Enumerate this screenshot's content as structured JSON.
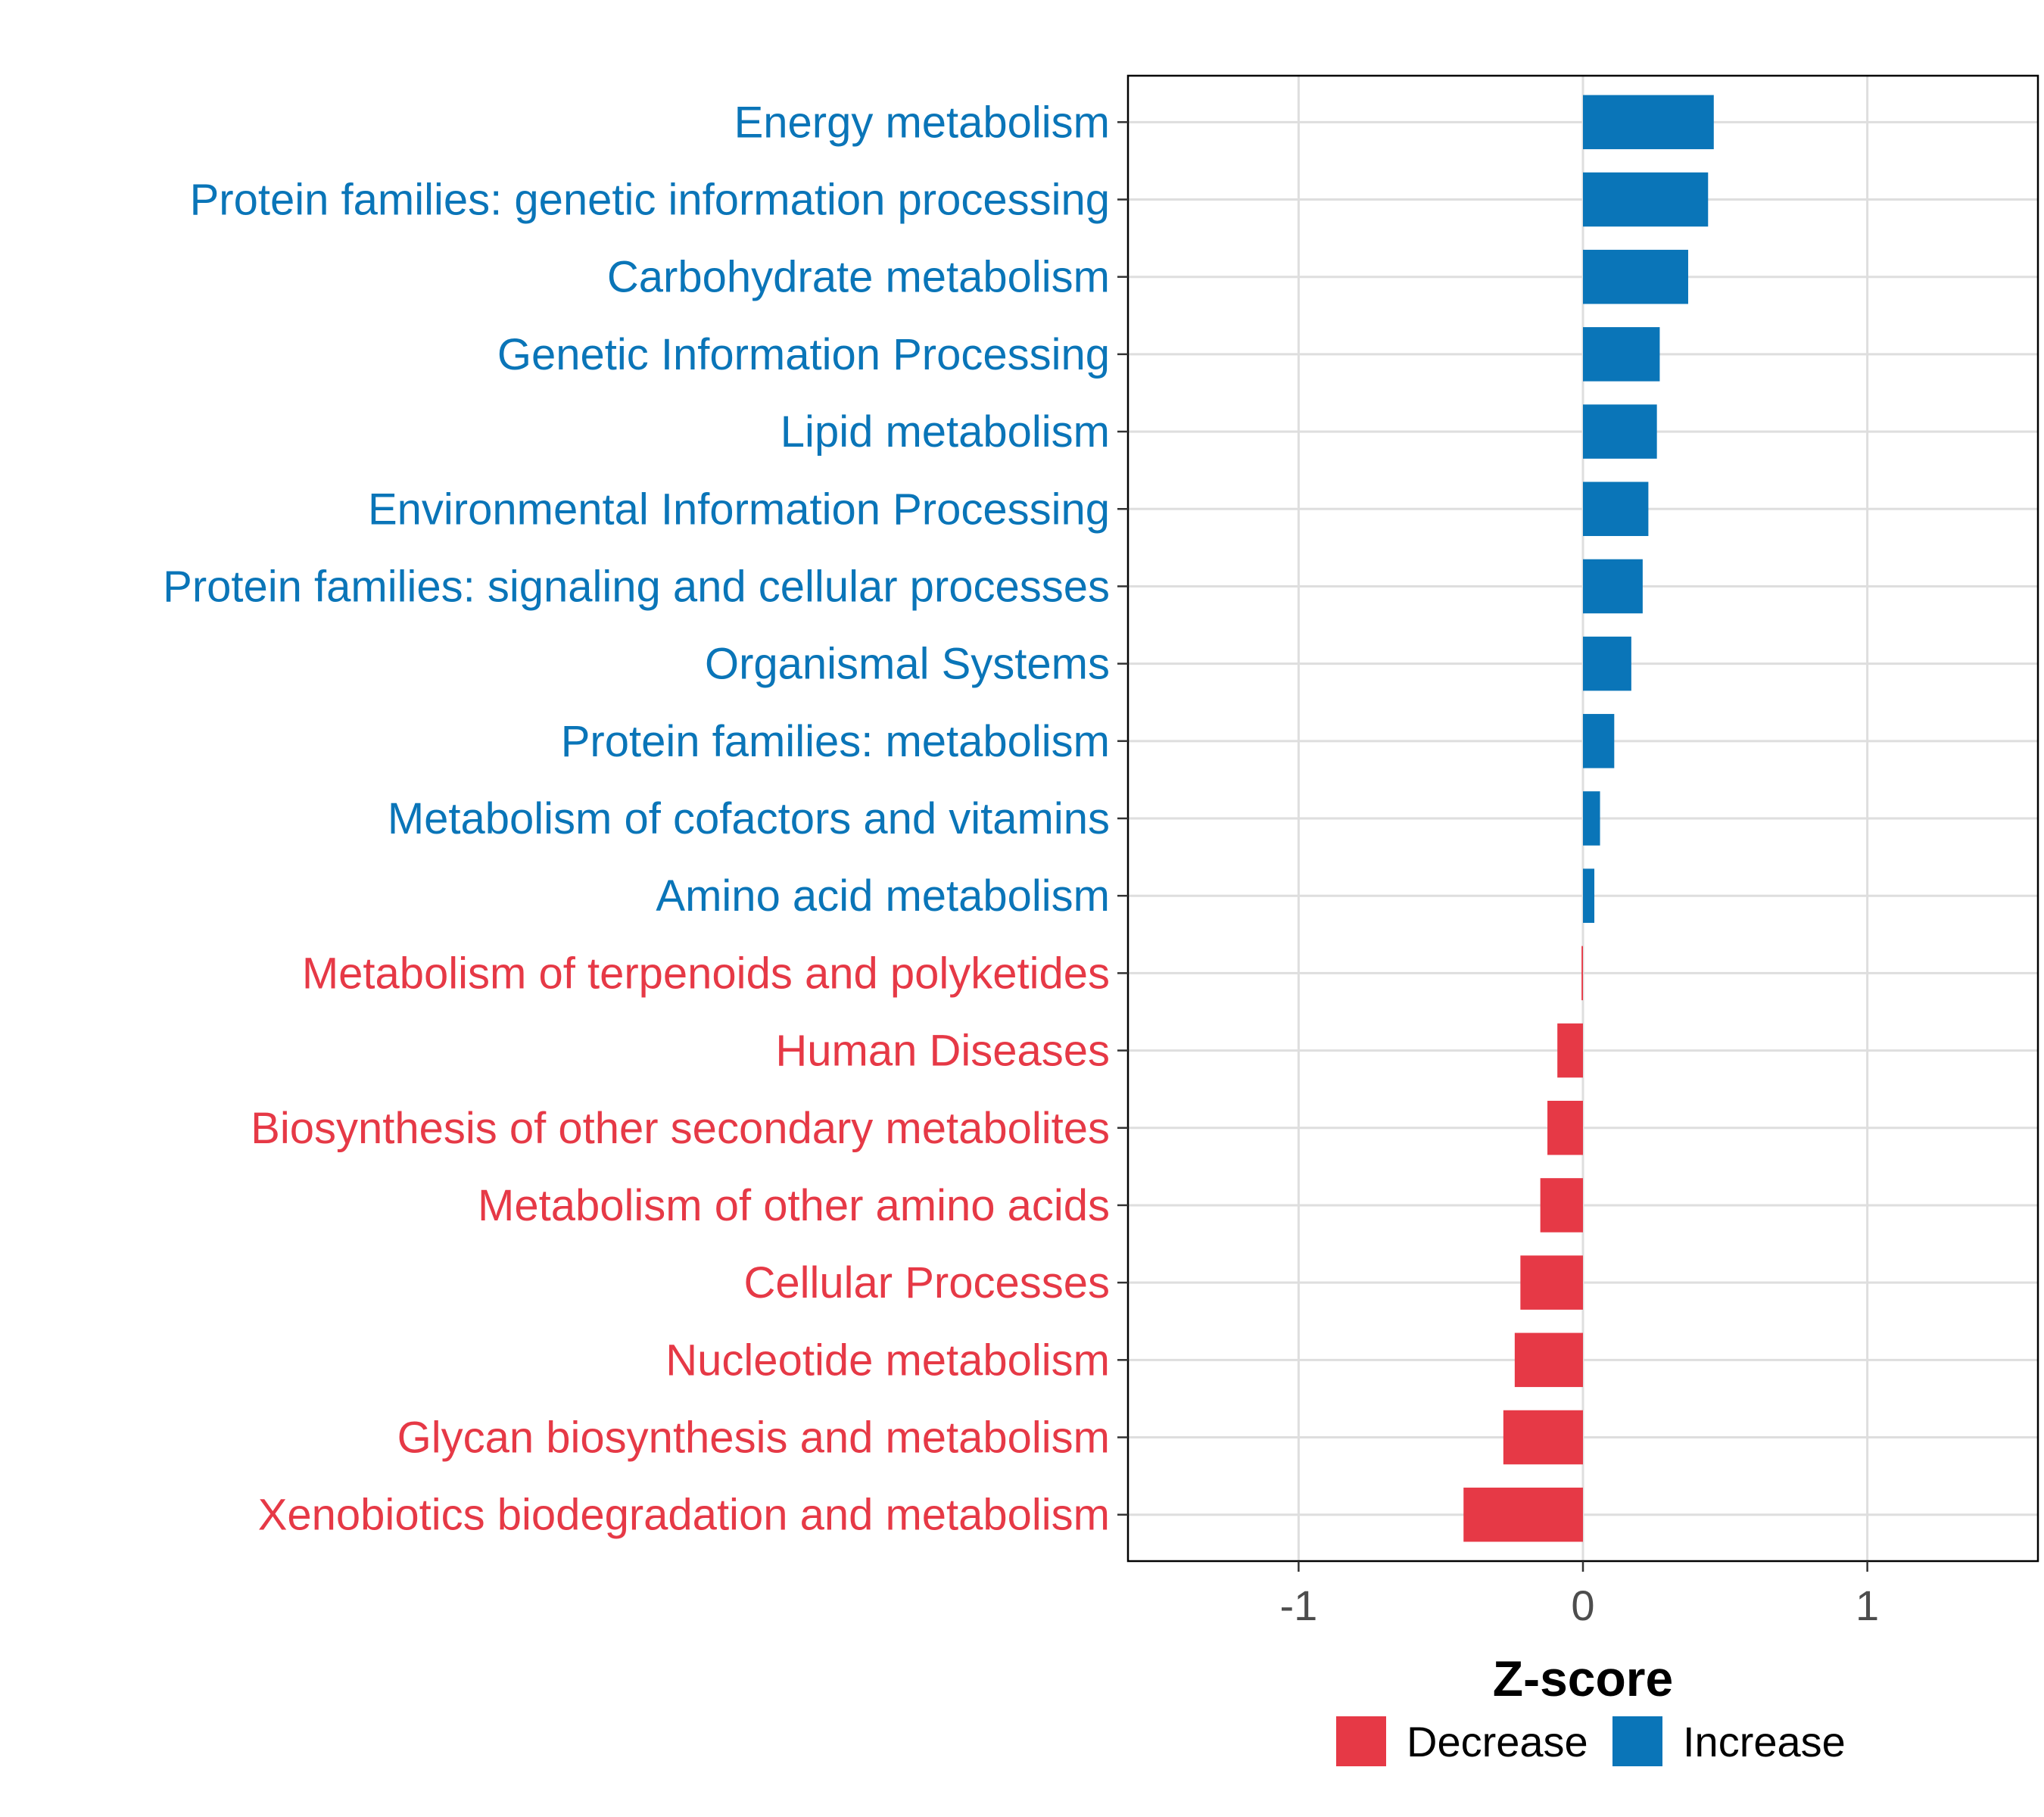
{
  "chart_data": {
    "type": "bar",
    "orientation": "horizontal",
    "xlabel": "Z-score",
    "xlim": [
      -1.6,
      1.6
    ],
    "xticks": [
      -1,
      0,
      1
    ],
    "xtick_labels": [
      "-1",
      "0",
      "1"
    ],
    "grid": true,
    "colors": {
      "Decrease": "#E63946",
      "Increase": "#0A75B8"
    },
    "categories": [
      "Energy metabolism",
      "Protein families: genetic information processing",
      "Carbohydrate metabolism",
      "Genetic Information Processing",
      "Lipid metabolism",
      "Environmental Information Processing",
      "Protein families: signaling and cellular processes",
      "Organismal Systems",
      "Protein families: metabolism",
      "Metabolism of cofactors and vitamins",
      "Amino acid metabolism",
      "Metabolism of terpenoids and polyketides",
      "Human Diseases",
      "Biosynthesis of other secondary metabolites",
      "Metabolism of other amino acids",
      "Cellular Processes",
      "Nucleotide metabolism",
      "Glycan biosynthesis and metabolism",
      "Xenobiotics biodegradation and metabolism"
    ],
    "values": [
      0.46,
      0.44,
      0.37,
      0.27,
      0.26,
      0.23,
      0.21,
      0.17,
      0.11,
      0.06,
      0.04,
      -0.005,
      -0.09,
      -0.125,
      -0.15,
      -0.22,
      -0.24,
      -0.28,
      -0.42
    ],
    "groups": [
      "Increase",
      "Increase",
      "Increase",
      "Increase",
      "Increase",
      "Increase",
      "Increase",
      "Increase",
      "Increase",
      "Increase",
      "Increase",
      "Decrease",
      "Decrease",
      "Decrease",
      "Decrease",
      "Decrease",
      "Decrease",
      "Decrease",
      "Decrease"
    ],
    "legend": {
      "placement": "bottom",
      "entries": [
        "Decrease",
        "Increase"
      ]
    }
  }
}
